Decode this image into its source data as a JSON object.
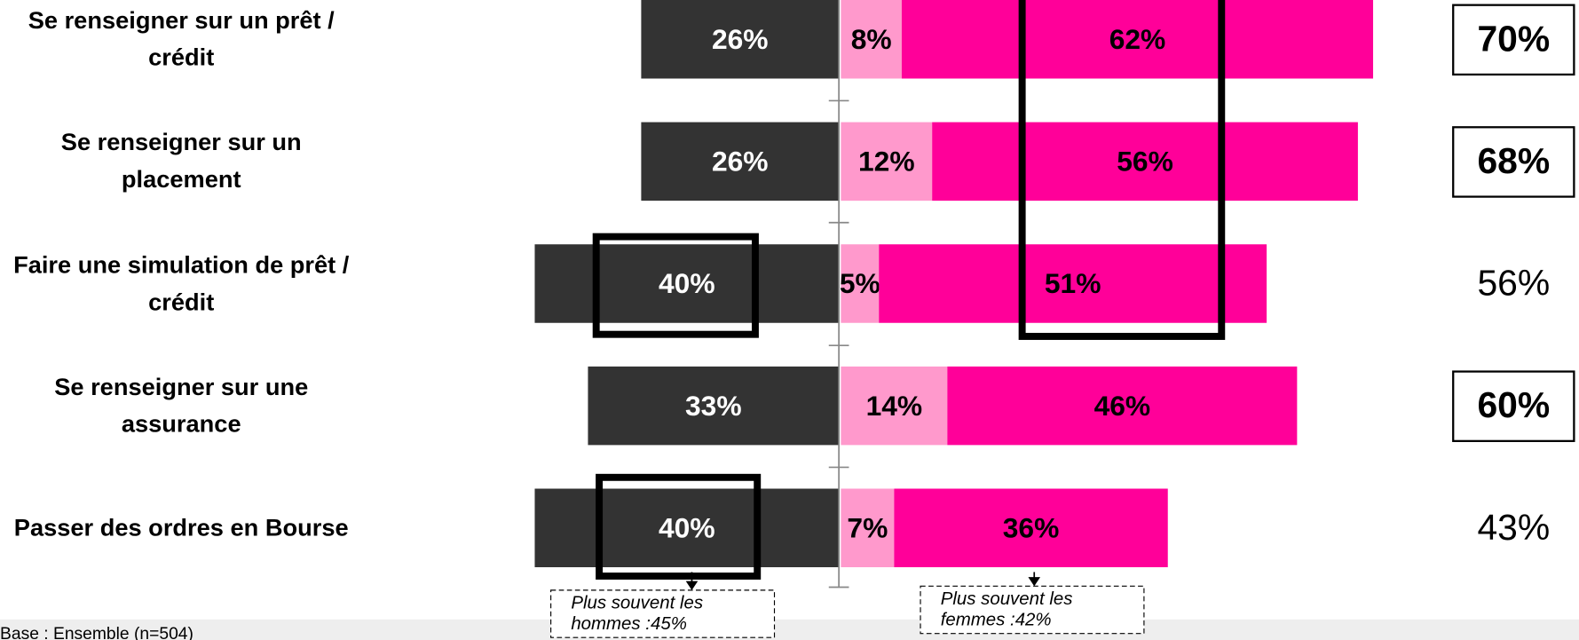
{
  "chart_data": {
    "type": "diverging-bar",
    "categories": [
      "Se renseigner sur un prêt / crédit",
      "Se renseigner sur un placement",
      "Faire une simulation de prêt / crédit",
      "Se renseigner sur une assurance",
      "Passer des ordres en Bourse"
    ],
    "series": [
      {
        "side": "left",
        "color": "#333333",
        "label_color": "#ffffff",
        "values": [
          26,
          26,
          40,
          33,
          40
        ],
        "value_labels": [
          "26%",
          "26%",
          "40%",
          "33%",
          "40%"
        ]
      },
      {
        "side": "right",
        "color": "#ff99cc",
        "label_color": "#000000",
        "values": [
          8,
          12,
          5,
          14,
          7
        ],
        "value_labels": [
          "8%",
          "12%",
          "5%",
          "14%",
          "7%"
        ]
      },
      {
        "side": "right",
        "color": "#ff0099",
        "label_color": "#000000",
        "values": [
          62,
          56,
          51,
          46,
          36
        ],
        "value_labels": [
          "62%",
          "56%",
          "51%",
          "46%",
          "36%"
        ]
      }
    ],
    "totals": [
      70,
      68,
      56,
      60,
      43
    ],
    "total_labels": [
      "70%",
      "68%",
      "56%",
      "60%",
      "43%"
    ],
    "total_boxed": [
      true,
      true,
      false,
      true,
      false
    ],
    "annotations": [
      "Plus souvent les hommes :45%",
      "Plus souvent les femmes :42%"
    ],
    "footnote": "Base : Ensemble (n=504)"
  }
}
